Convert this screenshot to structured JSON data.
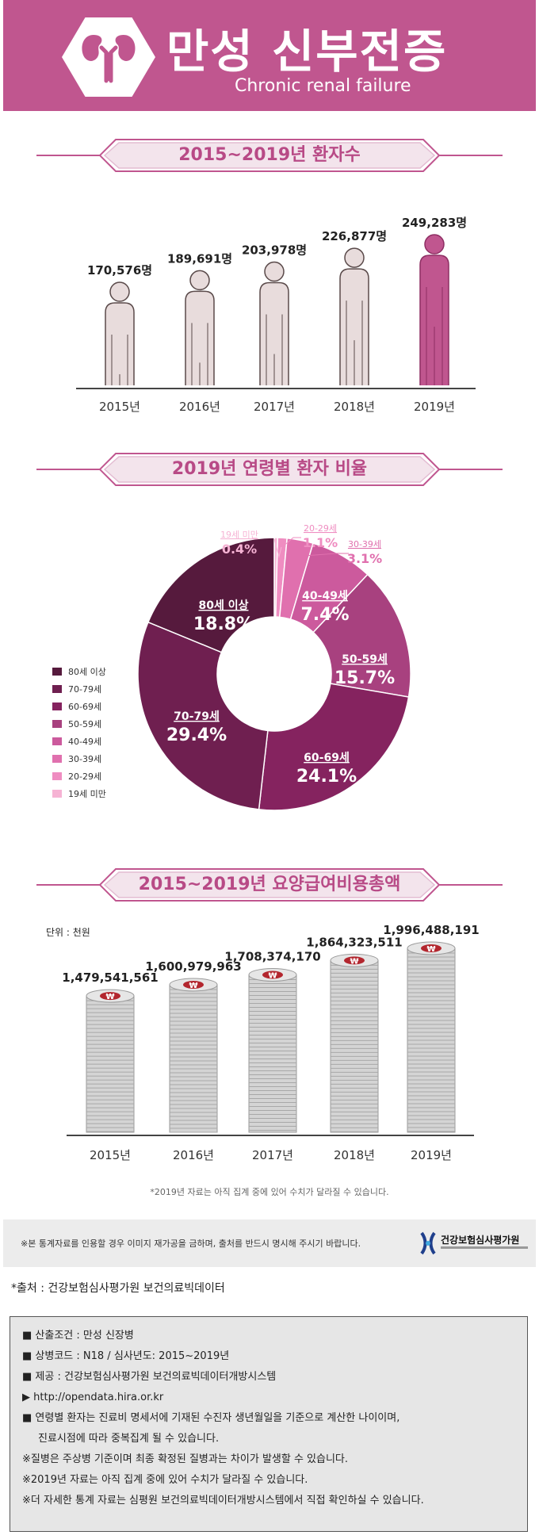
{
  "header": {
    "title_ko": "만성 신부전증",
    "title_en": "Chronic renal failure",
    "icon": "kidney-icon",
    "color": "#c0568f"
  },
  "sections": {
    "patients_title": "2015~2019년 환자수",
    "age_title": "2019년 연령별 환자 비율",
    "cost_title": "2015~2019년 요양급여비용총액"
  },
  "chart_data": [
    {
      "type": "bar",
      "title": "2015~2019년 환자수",
      "categories": [
        "2015년",
        "2016년",
        "2017년",
        "2018년",
        "2019년"
      ],
      "values": [
        170576,
        189691,
        203978,
        226877,
        249283
      ],
      "value_labels": [
        "170,576명",
        "189,691명",
        "203,978명",
        "226,877명",
        "249,283명"
      ],
      "colors": {
        "default": "#e8dcdc",
        "highlight": "#c0568f"
      },
      "grid": false
    },
    {
      "type": "pie",
      "title": "2019년 연령별 환자 비율",
      "style": "donut",
      "slices": [
        {
          "label": "19세 미만",
          "value": 0.4,
          "display": "0.4%",
          "color": "#f6b3d4"
        },
        {
          "label": "20-29세",
          "value": 1.1,
          "display": "1.1%",
          "color": "#ef8dc1"
        },
        {
          "label": "30-39세",
          "value": 3.1,
          "display": "3.1%",
          "color": "#e070ae"
        },
        {
          "label": "40-49세",
          "value": 7.4,
          "display": "7.4%",
          "color": "#cc5a9d"
        },
        {
          "label": "50-59세",
          "value": 15.7,
          "display": "15.7%",
          "color": "#a8417f"
        },
        {
          "label": "60-69세",
          "value": 24.1,
          "display": "24.1%",
          "color": "#85235f"
        },
        {
          "label": "70-79세",
          "value": 29.4,
          "display": "29.4%",
          "color": "#6f1f50"
        },
        {
          "label": "80세 이상",
          "value": 18.8,
          "display": "18.8%",
          "color": "#561a3d"
        }
      ],
      "legend": [
        "80세 이상",
        "70-79세",
        "60-69세",
        "50-59세",
        "40-49세",
        "30-39세",
        "20-29세",
        "19세 미만"
      ],
      "legend_placement": "left"
    },
    {
      "type": "bar",
      "title": "2015~2019년 요양급여비용총액",
      "unit_label": "단위 : 천원",
      "categories": [
        "2015년",
        "2016년",
        "2017년",
        "2018년",
        "2019년"
      ],
      "values": [
        1479541561,
        1600979963,
        1708374170,
        1864323511,
        1996488191
      ],
      "value_labels": [
        "1,479,541,561",
        "1,600,979,963",
        "1,708,374,170",
        "1,864,323,511",
        "1,996,488,191"
      ],
      "coin_symbol": "₩",
      "grid": false
    }
  ],
  "footnote": "*2019년 자료는 아직 집계 중에 있어 수치가 달라질 수 있습니다.",
  "notice": "※본 통계자료를 인용할 경우 이미지 재가공을 금하며, 출처를 반드시 명시해 주시기 바랍니다.",
  "org": {
    "name": "건강보험심사평가원",
    "logo_icon": "hira-logo-icon"
  },
  "source": "*출처 : 건강보험심사평가원 보건의료빅데이터",
  "info_lines": [
    {
      "bullet": "■",
      "text": "산출조건 : 만성 신장병"
    },
    {
      "bullet": "■",
      "text": "상병코드 : N18 / 심사년도: 2015~2019년"
    },
    {
      "bullet": "■",
      "text": "제공 : 건강보험심사평가원 보건의료빅데이터개방시스템"
    },
    {
      "bullet": "▶",
      "text": "http://opendata.hira.or.kr"
    },
    {
      "bullet": "■",
      "text": "연령별 환자는 진료비 명세서에 기재된 수진자 생년월일을 기준으로 계산한 나이이며,"
    },
    {
      "bullet": "",
      "text": "진료시점에 따라 중복집계 될 수 있습니다."
    },
    {
      "bullet": "",
      "text": "※질병은 주상병 기준이며 최종 확정된 질병과는 차이가 발생할 수 있습니다."
    },
    {
      "bullet": "",
      "text": "※2019년 자료는 아직 집계 중에 있어 수치가 달라질 수 있습니다."
    },
    {
      "bullet": "",
      "text": "※더 자세한 통계 자료는 심평원 보건의료빅데이터개방시스템에서 직접 확인하실 수 있습니다."
    }
  ]
}
